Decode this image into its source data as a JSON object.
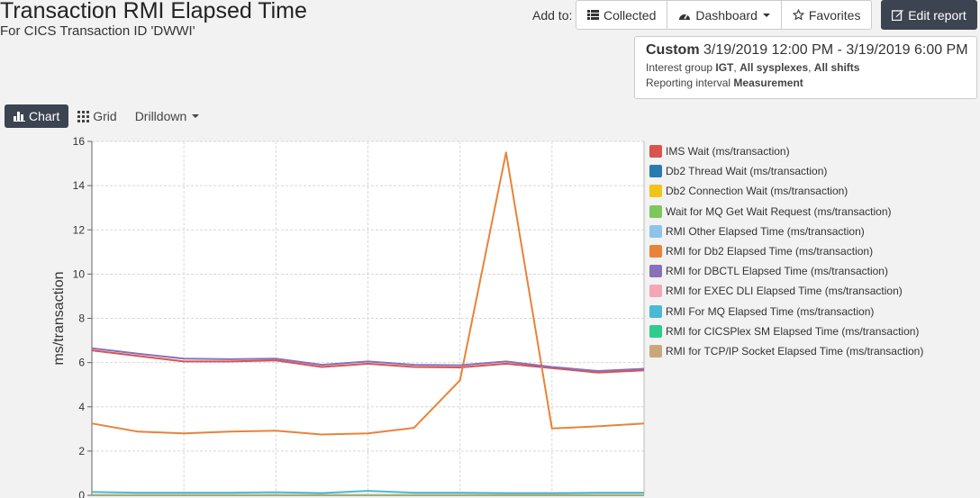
{
  "header": {
    "title": "Transaction RMI Elapsed Time",
    "subtitle": "For CICS Transaction ID 'DWWI'"
  },
  "toolbar": {
    "add_to_label": "Add to:",
    "collected_label": "Collected",
    "dashboard_label": "Dashboard",
    "favorites_label": "Favorites",
    "edit_report_label": "Edit report"
  },
  "range": {
    "mode": "Custom",
    "period": "3/19/2019 12:00 PM - 3/19/2019 6:00 PM",
    "interest_prefix": "Interest group",
    "interest_group": "IGT",
    "sysplexes": "All sysplexes",
    "shifts": "All shifts",
    "interval_prefix": "Reporting interval",
    "interval": "Measurement"
  },
  "views": {
    "chart_label": "Chart",
    "grid_label": "Grid",
    "drilldown_label": "Drilldown"
  },
  "chart_data": {
    "type": "line",
    "ylabel": "ms/transaction",
    "xlabel": "",
    "ylim": [
      0,
      16
    ],
    "yticks": [
      0,
      2,
      4,
      6,
      8,
      10,
      12,
      14,
      16
    ],
    "grid": true,
    "legend_position": "right",
    "x": [
      0,
      1,
      2,
      3,
      4,
      5,
      6,
      7,
      8,
      9,
      10,
      11,
      12
    ],
    "series": [
      {
        "name": "IMS Wait (ms/transaction)",
        "color": "#d9534f",
        "values": [
          6.55,
          6.3,
          6.05,
          6.05,
          6.1,
          5.8,
          5.95,
          5.8,
          5.78,
          5.95,
          5.75,
          5.55,
          5.65
        ]
      },
      {
        "name": "Db2 Thread Wait (ms/transaction)",
        "color": "#2a7ab0",
        "values": [
          0,
          0,
          0,
          0,
          0,
          0,
          0,
          0,
          0,
          0,
          0,
          0,
          0
        ]
      },
      {
        "name": "Db2 Connection Wait (ms/transaction)",
        "color": "#f0c419",
        "values": [
          0,
          0,
          0,
          0,
          0,
          0,
          0,
          0,
          0,
          0,
          0,
          0,
          0
        ]
      },
      {
        "name": "Wait for MQ Get Wait Request (ms/transaction)",
        "color": "#7dc75d",
        "values": [
          0,
          0,
          0,
          0,
          0,
          0,
          0,
          0,
          0,
          0,
          0,
          0,
          0
        ]
      },
      {
        "name": "RMI Other Elapsed Time (ms/transaction)",
        "color": "#8ec3ea",
        "values": [
          0,
          0,
          0,
          0,
          0,
          0,
          0,
          0,
          0,
          0,
          0,
          0,
          0
        ]
      },
      {
        "name": "RMI for Db2 Elapsed Time (ms/transaction)",
        "color": "#e8833a",
        "values": [
          3.25,
          2.88,
          2.8,
          2.88,
          2.92,
          2.75,
          2.8,
          3.05,
          5.2,
          15.5,
          3.02,
          3.12,
          3.25
        ]
      },
      {
        "name": "RMI for DBCTL Elapsed Time (ms/transaction)",
        "color": "#8a6fba",
        "values": [
          6.65,
          6.4,
          6.18,
          6.15,
          6.18,
          5.9,
          6.05,
          5.9,
          5.88,
          6.05,
          5.8,
          5.62,
          5.72
        ]
      },
      {
        "name": "RMI for EXEC DLI Elapsed Time (ms/transaction)",
        "color": "#f4a6b4",
        "values": [
          0,
          0,
          0,
          0,
          0,
          0,
          0,
          0,
          0,
          0,
          0,
          0,
          0
        ]
      },
      {
        "name": "RMI For MQ Elapsed Time (ms/transaction)",
        "color": "#4bb8d4",
        "values": [
          0.15,
          0.12,
          0.12,
          0.12,
          0.14,
          0.1,
          0.2,
          0.12,
          0.12,
          0.1,
          0.1,
          0.12,
          0.12
        ]
      },
      {
        "name": "RMI for CICSPlex SM Elapsed Time (ms/transaction)",
        "color": "#2ecc8f",
        "values": [
          0,
          0,
          0,
          0,
          0,
          0,
          0,
          0,
          0,
          0,
          0,
          0,
          0
        ]
      },
      {
        "name": "RMI for TCP/IP Socket Elapsed Time (ms/transaction)",
        "color": "#c8a77a",
        "values": [
          0.02,
          0.02,
          0.02,
          0.02,
          0.02,
          0.02,
          0.02,
          0.02,
          0.02,
          0.02,
          0.02,
          0.02,
          0.02
        ]
      }
    ]
  }
}
